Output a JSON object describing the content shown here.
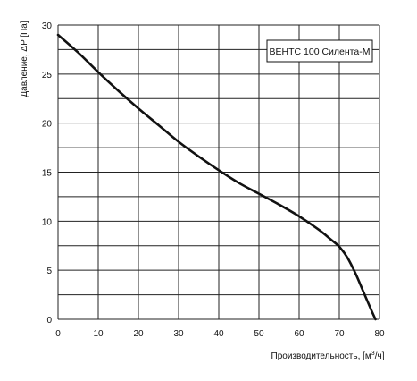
{
  "chart_data": {
    "type": "line",
    "xlabel": "Производительность, [м",
    "xlabel_sup": "3",
    "xlabel_tail": "/ч]",
    "ylabel": "Давление, ΔP [Па]",
    "xlim": [
      0,
      80
    ],
    "ylim": [
      0,
      30
    ],
    "x_ticks": [
      "0",
      "10",
      "20",
      "30",
      "40",
      "50",
      "60",
      "70",
      "80"
    ],
    "y_ticks": [
      "0",
      "5",
      "10",
      "15",
      "20",
      "25",
      "30"
    ],
    "x_gridlines": [
      0,
      10,
      20,
      30,
      40,
      50,
      60,
      70,
      80
    ],
    "y_gridlines": [
      0,
      2.5,
      5,
      7.5,
      10,
      12.5,
      15,
      17.5,
      20,
      22.5,
      25,
      27.5,
      30
    ],
    "grid": true,
    "legend_position": "top-right",
    "series": [
      {
        "name": "ВЕНТС 100 Силента-М",
        "color": "#111111",
        "x": [
          0,
          5,
          10,
          15,
          20,
          25,
          30,
          35,
          40,
          45,
          50,
          55,
          60,
          65,
          68,
          70,
          72,
          74,
          76,
          78,
          79
        ],
        "y": [
          29,
          27.2,
          25.2,
          23.3,
          21.5,
          19.8,
          18.1,
          16.6,
          15.2,
          13.9,
          12.8,
          11.7,
          10.5,
          9.1,
          8.1,
          7.4,
          6.3,
          4.7,
          2.8,
          0.9,
          0
        ]
      }
    ]
  }
}
